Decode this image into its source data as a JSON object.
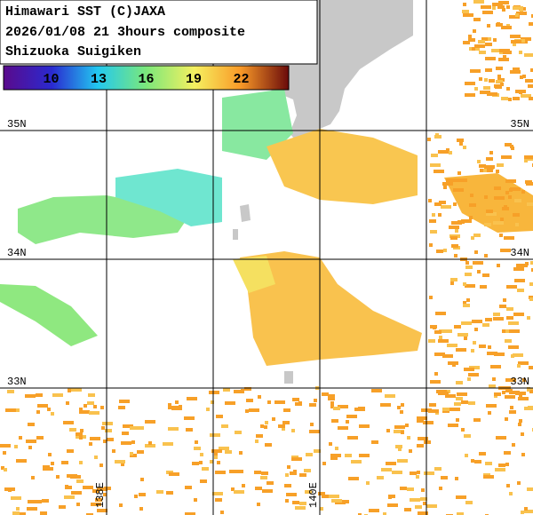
{
  "header": {
    "lines": [
      "Himawari SST (C)JAXA",
      "2026/01/08 21 3hours composite",
      "Shizuoka Suigiken"
    ]
  },
  "colorbar": {
    "range": [
      7,
      25
    ],
    "ticks": [
      10,
      13,
      16,
      19,
      22
    ]
  },
  "grid": {
    "lat_labels": [
      "35N",
      "34N",
      "33N"
    ],
    "lon_labels": [
      "138E",
      "140E"
    ]
  }
}
